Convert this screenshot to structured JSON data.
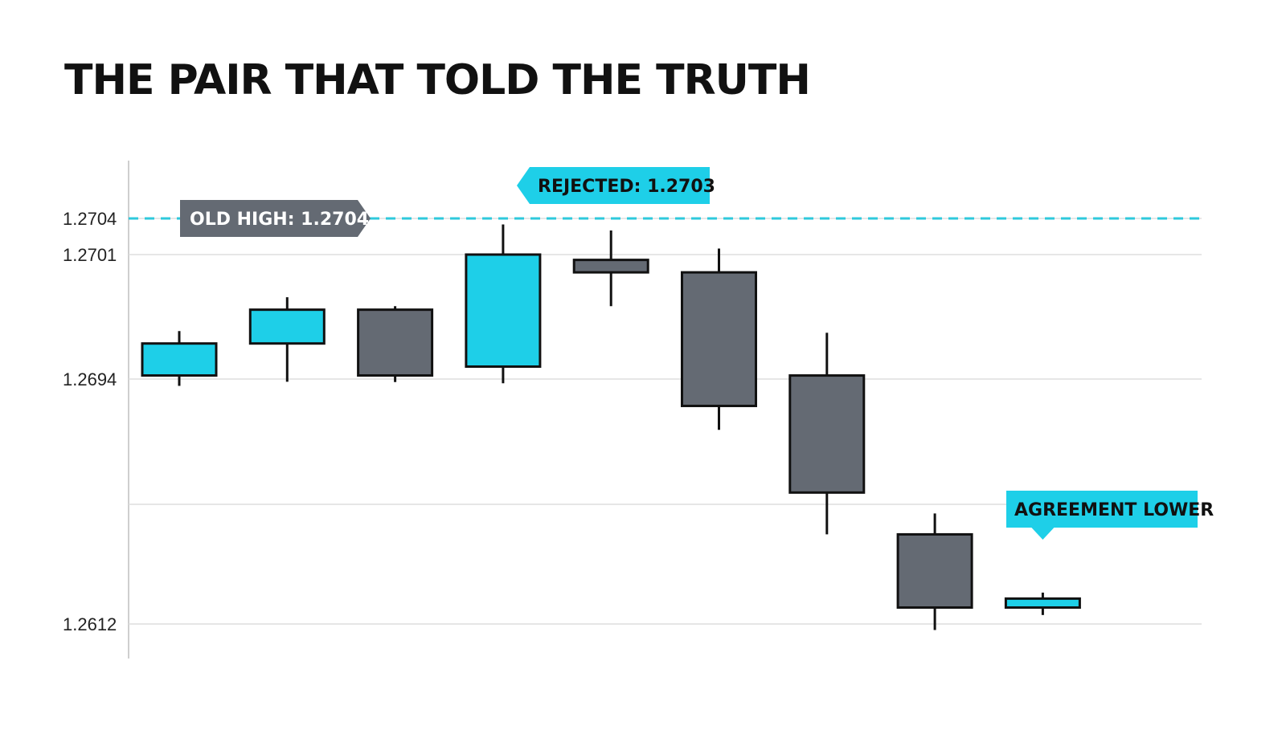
{
  "title": "THE PAIR THAT TOLD THE TRUTH",
  "colors": {
    "up": "#1ecfe8",
    "down": "#646a73",
    "outline": "#111111",
    "level_line": "#2ec9dc",
    "grid": "#dddddd",
    "axis": "#cfcfcf",
    "callout_dark": "#646a73",
    "callout_accent": "#1ecfe8"
  },
  "chart_data": {
    "type": "candlestick",
    "title": "THE PAIR THAT TOLD THE TRUTH",
    "xlabel": "",
    "ylabel": "",
    "y_ticks": [
      "1.2704",
      "1.2701",
      "1.2694",
      "1.2612"
    ],
    "grid": true,
    "candles": [
      {
        "open": 1.26942,
        "high": 1.26967,
        "low": 1.26917,
        "close": 1.2696,
        "direction": "up"
      },
      {
        "open": 1.2696,
        "high": 1.26986,
        "low": 1.26931,
        "close": 1.26979,
        "direction": "up"
      },
      {
        "open": 1.26979,
        "high": 1.26981,
        "low": 1.2693,
        "close": 1.26942,
        "direction": "down"
      },
      {
        "open": 1.26947,
        "high": 1.27035,
        "low": 1.26926,
        "close": 1.2701,
        "direction": "up"
      },
      {
        "open": 1.27007,
        "high": 1.2703,
        "low": 1.26981,
        "close": 1.27,
        "direction": "down"
      },
      {
        "open": 1.27,
        "high": 1.27015,
        "low": 1.2677,
        "close": 1.2685,
        "direction": "down"
      },
      {
        "open": 1.26942,
        "high": 1.26966,
        "low": 1.2642,
        "close": 1.2656,
        "direction": "down"
      },
      {
        "open": 1.2642,
        "high": 1.2649,
        "low": 1.261,
        "close": 1.26175,
        "direction": "down"
      },
      {
        "open": 1.26175,
        "high": 1.26225,
        "low": 1.2615,
        "close": 1.26205,
        "direction": "up"
      }
    ],
    "reference_level": {
      "value": 1.2704,
      "style": "dashed"
    },
    "annotations": [
      {
        "text": "OLD HIGH: 1.2704",
        "target": "reference_level"
      },
      {
        "text": "REJECTED: 1.2703",
        "target_candle": 4
      },
      {
        "text": "AGREEMENT LOWER",
        "target_candle": 8
      }
    ]
  }
}
